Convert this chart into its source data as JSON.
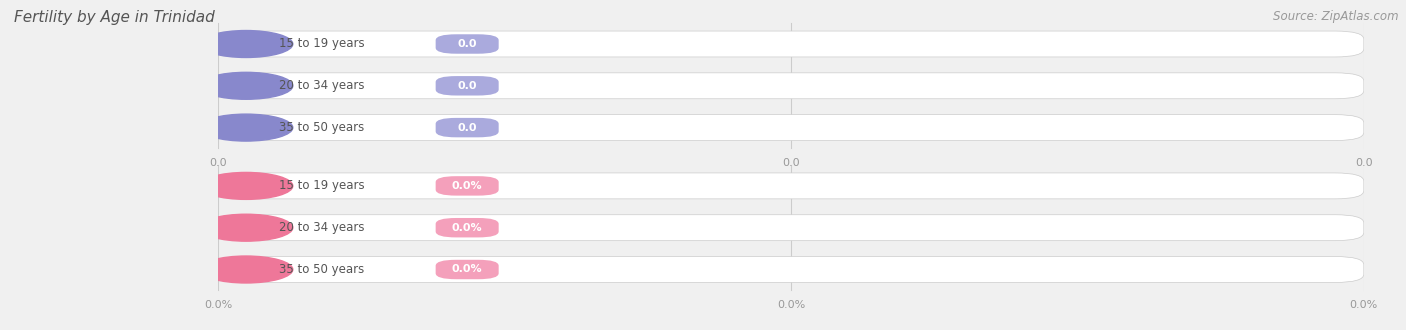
{
  "title": "Fertility by Age in Trinidad",
  "source_text": "Source: ZipAtlas.com",
  "background_color": "#f0f0f0",
  "bar_bg_color_top": "#e8e8f0",
  "bar_bg_color_bot": "#fce8ef",
  "circle_color_top": "#8888cc",
  "circle_color_bot": "#ee7799",
  "badge_color_top": "#aaaadd",
  "badge_color_bot": "#f4a0bb",
  "categories_top": [
    "15 to 19 years",
    "20 to 34 years",
    "35 to 50 years"
  ],
  "categories_bot": [
    "15 to 19 years",
    "20 to 34 years",
    "35 to 50 years"
  ],
  "values_top": [
    "0.0",
    "0.0",
    "0.0"
  ],
  "values_bot": [
    "0.0%",
    "0.0%",
    "0.0%"
  ],
  "tick_labels_top": [
    "0.0",
    "0.0",
    "0.0"
  ],
  "tick_labels_bot": [
    "0.0%",
    "0.0%",
    "0.0%"
  ],
  "title_fontsize": 11,
  "label_fontsize": 8.5,
  "tick_fontsize": 8,
  "source_fontsize": 8.5,
  "title_color": "#555555",
  "label_color": "#555555",
  "tick_color": "#999999",
  "source_color": "#999999"
}
